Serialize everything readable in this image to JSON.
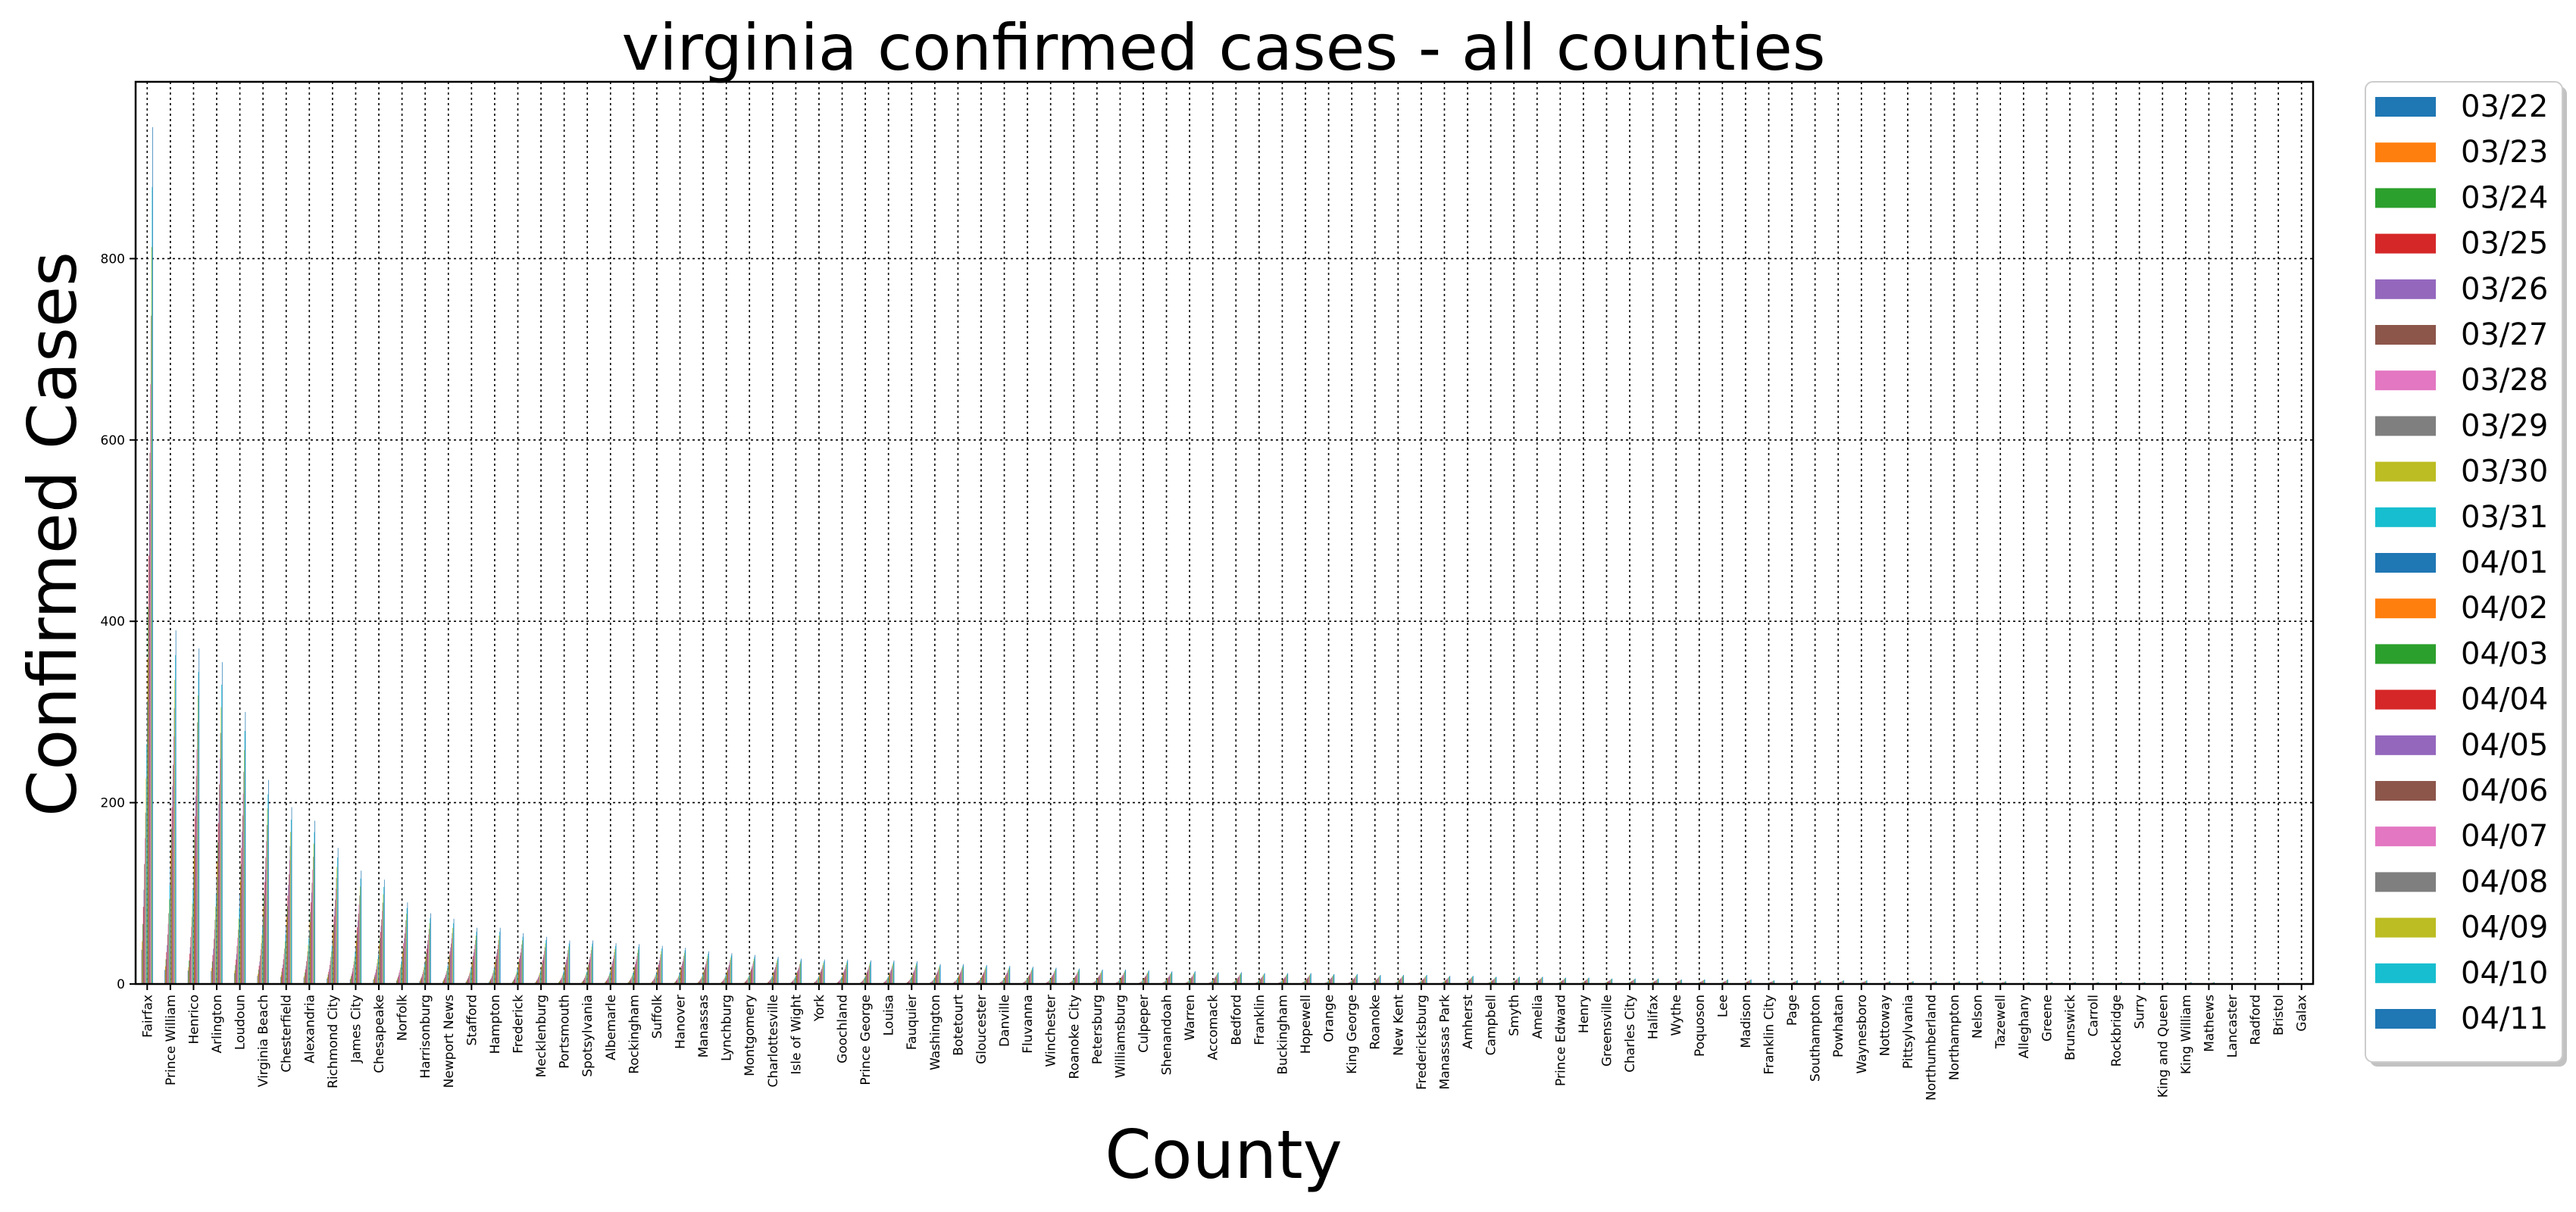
{
  "chart_data": {
    "type": "bar",
    "title": "virginia confirmed cases - all counties",
    "xlabel": "County",
    "ylabel": "Confirmed Cases",
    "ylim": [
      0,
      995
    ],
    "yticks": [
      0,
      200,
      400,
      600,
      800
    ],
    "grid": true,
    "legend_position": "right",
    "categories": [
      "Fairfax",
      "Prince William",
      "Henrico",
      "Arlington",
      "Loudoun",
      "Virginia Beach",
      "Chesterfield",
      "Alexandria",
      "Richmond City",
      "James City",
      "Chesapeake",
      "Norfolk",
      "Harrisonburg",
      "Newport News",
      "Stafford",
      "Hampton",
      "Frederick",
      "Mecklenburg",
      "Portsmouth",
      "Spotsylvania",
      "Albemarle",
      "Rockingham",
      "Suffolk",
      "Hanover",
      "Manassas",
      "Lynchburg",
      "Montgomery",
      "Charlottesville",
      "Isle of Wight",
      "York",
      "Goochland",
      "Prince George",
      "Louisa",
      "Fauquier",
      "Washington",
      "Botetourt",
      "Gloucester",
      "Danville",
      "Fluvanna",
      "Winchester",
      "Roanoke City",
      "Petersburg",
      "Williamsburg",
      "Culpeper",
      "Shenandoah",
      "Warren",
      "Accomack",
      "Bedford",
      "Franklin",
      "Buckingham",
      "Hopewell",
      "Orange",
      "King George",
      "Roanoke",
      "New Kent",
      "Fredericksburg",
      "Manassas Park",
      "Amherst",
      "Campbell",
      "Smyth",
      "Amelia",
      "Prince Edward",
      "Henry",
      "Greensville",
      "Charles City",
      "Halifax",
      "Wythe",
      "Poquoson",
      "Lee",
      "Madison",
      "Franklin City",
      "Page",
      "Southampton",
      "Powhatan",
      "Waynesboro",
      "Nottoway",
      "Pittsylvania",
      "Northumberland",
      "Northampton",
      "Nelson",
      "Tazewell",
      "Alleghany",
      "Greene",
      "Brunswick",
      "Carroll",
      "Rockbridge",
      "Surry",
      "King and Queen",
      "King William",
      "Mathews",
      "Lancaster",
      "Radford",
      "Bristol",
      "Galax"
    ],
    "series_names": [
      "03/22",
      "03/23",
      "03/24",
      "03/25",
      "03/26",
      "03/27",
      "03/28",
      "03/29",
      "03/30",
      "03/31",
      "04/01",
      "04/02",
      "04/03",
      "04/04",
      "04/05",
      "04/06",
      "04/07",
      "04/08",
      "04/09",
      "04/10",
      "04/11"
    ],
    "final_values": [
      945,
      390,
      370,
      355,
      300,
      225,
      195,
      180,
      150,
      125,
      115,
      90,
      78,
      72,
      62,
      62,
      56,
      52,
      48,
      48,
      45,
      44,
      42,
      40,
      36,
      34,
      32,
      30,
      28,
      27,
      27,
      26,
      26,
      25,
      22,
      22,
      21,
      20,
      19,
      18,
      17,
      16,
      16,
      15,
      14,
      14,
      13,
      13,
      12,
      12,
      12,
      11,
      11,
      10,
      10,
      10,
      9,
      9,
      8,
      8,
      8,
      7,
      7,
      6,
      6,
      6,
      5,
      5,
      5,
      5,
      4,
      4,
      4,
      4,
      4,
      3,
      3,
      3,
      3,
      3,
      3,
      2,
      2,
      2,
      2,
      2,
      2,
      2,
      2,
      2,
      1,
      1,
      1,
      1
    ],
    "growth_profile": [
      0.04,
      0.05,
      0.07,
      0.09,
      0.11,
      0.14,
      0.17,
      0.2,
      0.24,
      0.28,
      0.33,
      0.38,
      0.44,
      0.5,
      0.56,
      0.62,
      0.7,
      0.78,
      0.86,
      0.93,
      1.0
    ],
    "series_colors": [
      "#1f77b4",
      "#ff7f0e",
      "#2ca02c",
      "#d62728",
      "#9467bd",
      "#8c564b",
      "#e377c2",
      "#7f7f7f",
      "#bcbd22",
      "#17becf",
      "#1f77b4",
      "#ff7f0e",
      "#2ca02c",
      "#d62728",
      "#9467bd",
      "#8c564b",
      "#e377c2",
      "#7f7f7f",
      "#bcbd22",
      "#17becf",
      "#1f77b4"
    ]
  }
}
